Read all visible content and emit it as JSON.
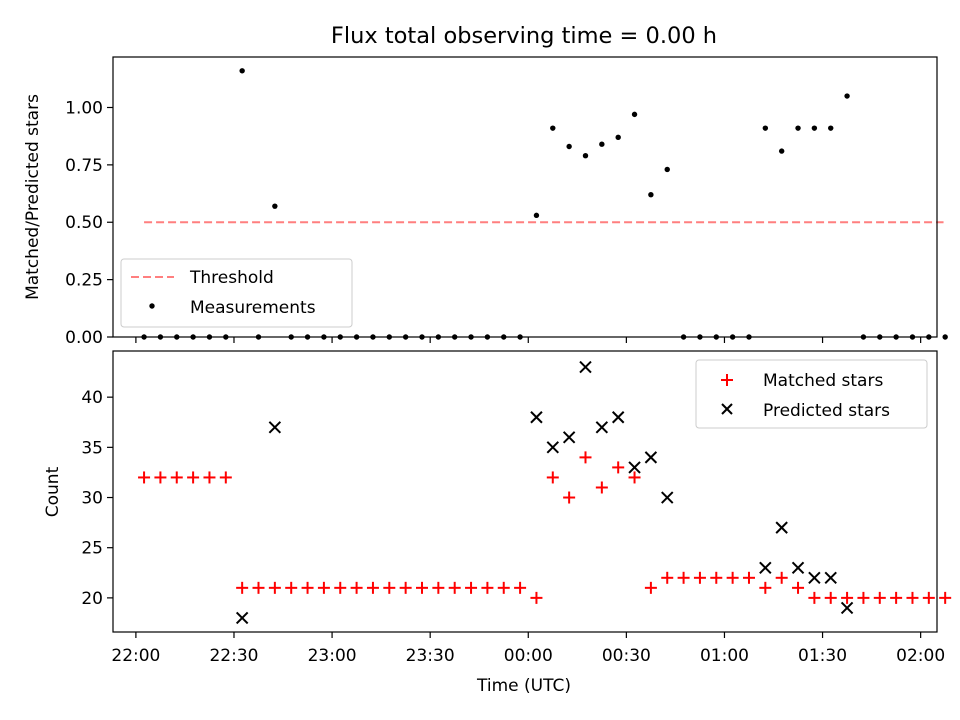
{
  "chart_data": {
    "title": "Flux total observing time = 0.00 h",
    "xlabel": "Time (UTC)",
    "x_tick_labels": [
      "22:00",
      "22:30",
      "23:00",
      "23:30",
      "00:00",
      "00:30",
      "01:00",
      "01:30",
      "02:00"
    ],
    "x_tick_minutes": [
      0,
      30,
      60,
      90,
      120,
      150,
      180,
      210,
      240
    ],
    "xlim_minutes": [
      -7,
      245
    ],
    "panels": [
      {
        "type": "scatter",
        "ylabel": "Matched/Predicted stars",
        "ylim": [
          0,
          1.22
        ],
        "y_ticks": [
          0.0,
          0.25,
          0.5,
          0.75,
          1.0
        ],
        "y_tick_labels": [
          "0.00",
          "0.25",
          "0.50",
          "0.75",
          "1.00"
        ],
        "legend_position": "lower-left",
        "threshold": {
          "name": "Threshold",
          "y": 0.5,
          "x_range": [
            2.5,
            247
          ],
          "color": "#ff7f7f"
        },
        "measurements": {
          "name": "Measurements",
          "color": "#000000",
          "x": [
            2.5,
            7.5,
            12.5,
            17.5,
            22.5,
            27.5,
            32.5,
            37.5,
            42.5,
            47.5,
            52.5,
            57.5,
            62.5,
            67.5,
            72.5,
            77.5,
            82.5,
            87.5,
            92.5,
            97.5,
            102.5,
            107.5,
            112.5,
            117.5,
            122.5,
            127.5,
            132.5,
            137.5,
            142.5,
            147.5,
            152.5,
            157.5,
            162.5,
            167.5,
            172.5,
            177.5,
            182.5,
            187.5,
            192.5,
            197.5,
            202.5,
            207.5,
            212.5,
            217.5,
            222.5,
            227.5,
            232.5,
            237.5,
            242.5,
            247.5
          ],
          "y": [
            0,
            0,
            0,
            0,
            0,
            0,
            1.16,
            0,
            0.57,
            0,
            0,
            0,
            0,
            0,
            0,
            0,
            0,
            0,
            0,
            0,
            0,
            0,
            0,
            0,
            0.53,
            0.91,
            0.83,
            0.79,
            0.84,
            0.87,
            0.97,
            0.62,
            0.73,
            0,
            0,
            0,
            0,
            0,
            0.91,
            0.81,
            0.91,
            0.91,
            0.91,
            1.05,
            0,
            0,
            0,
            0,
            0,
            0
          ]
        }
      },
      {
        "type": "scatter",
        "ylabel": "Count",
        "ylim": [
          16.6,
          44.6
        ],
        "y_ticks": [
          20,
          25,
          30,
          35,
          40
        ],
        "y_tick_labels": [
          "20",
          "25",
          "30",
          "35",
          "40"
        ],
        "legend_position": "upper-right",
        "series": [
          {
            "name": "Matched stars",
            "marker": "plus",
            "color": "#ff0000",
            "x": [
              2.5,
              7.5,
              12.5,
              17.5,
              22.5,
              27.5,
              32.5,
              37.5,
              42.5,
              47.5,
              52.5,
              57.5,
              62.5,
              67.5,
              72.5,
              77.5,
              82.5,
              87.5,
              92.5,
              97.5,
              102.5,
              107.5,
              112.5,
              117.5,
              122.5,
              127.5,
              132.5,
              137.5,
              142.5,
              147.5,
              152.5,
              157.5,
              162.5,
              167.5,
              172.5,
              177.5,
              182.5,
              187.5,
              192.5,
              197.5,
              202.5,
              207.5,
              212.5,
              217.5,
              222.5,
              227.5,
              232.5,
              237.5,
              242.5,
              247.5
            ],
            "y": [
              32,
              32,
              32,
              32,
              32,
              32,
              21,
              21,
              21,
              21,
              21,
              21,
              21,
              21,
              21,
              21,
              21,
              21,
              21,
              21,
              21,
              21,
              21,
              21,
              20,
              32,
              30,
              34,
              31,
              33,
              32,
              21,
              22,
              22,
              22,
              22,
              22,
              22,
              21,
              22,
              21,
              20,
              20,
              20,
              20,
              20,
              20,
              20,
              20,
              20
            ]
          },
          {
            "name": "Predicted stars",
            "marker": "x",
            "color": "#000000",
            "x": [
              32.5,
              42.5,
              122.5,
              127.5,
              132.5,
              137.5,
              142.5,
              147.5,
              152.5,
              157.5,
              162.5,
              192.5,
              197.5,
              202.5,
              207.5,
              212.5,
              217.5
            ],
            "y": [
              18,
              37,
              38,
              35,
              36,
              43,
              37,
              38,
              33,
              34,
              30,
              23,
              27,
              23,
              22,
              22,
              19
            ]
          }
        ]
      }
    ]
  }
}
